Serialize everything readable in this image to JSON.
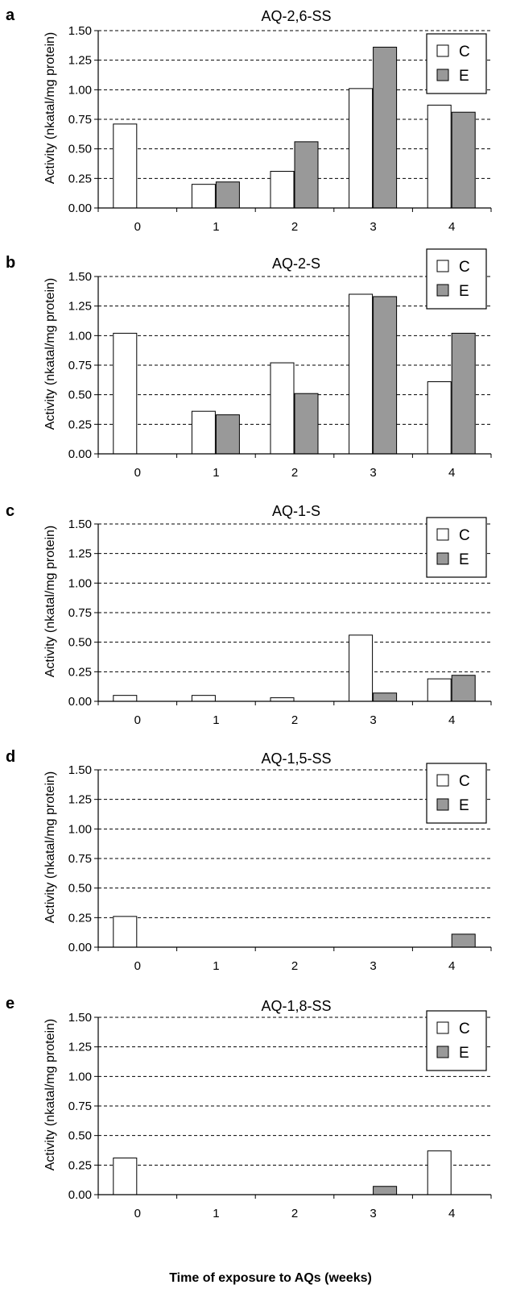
{
  "figure": {
    "xlabel": "Time of exposure to AQs (weeks)",
    "ylabel": "Activity (nkatal/mg protein)",
    "legend": [
      {
        "label": "C",
        "color": "#ffffff"
      },
      {
        "label": "E",
        "color": "#999999"
      }
    ]
  },
  "chart_data": [
    {
      "type": "bar",
      "panel": "a",
      "title": "AQ-2,6-SS",
      "categories": [
        "0",
        "1",
        "2",
        "3",
        "4"
      ],
      "series": [
        {
          "name": "C",
          "color": "#ffffff",
          "values": [
            0.71,
            0.2,
            0.31,
            1.01,
            0.87
          ]
        },
        {
          "name": "E",
          "color": "#999999",
          "values": [
            0.0,
            0.22,
            0.56,
            1.36,
            0.81
          ]
        }
      ],
      "ylabel": "Activity (nkatal/mg protein)",
      "ylim": [
        0,
        1.5
      ],
      "yticks": [
        "0.00",
        "0.25",
        "0.50",
        "0.75",
        "1.00",
        "1.25",
        "1.50"
      ],
      "grid": "horizontal dashed",
      "legend_position": "top-right"
    },
    {
      "type": "bar",
      "panel": "b",
      "title": "AQ-2-S",
      "categories": [
        "0",
        "1",
        "2",
        "3",
        "4"
      ],
      "series": [
        {
          "name": "C",
          "color": "#ffffff",
          "values": [
            1.02,
            0.36,
            0.77,
            1.35,
            0.61
          ]
        },
        {
          "name": "E",
          "color": "#999999",
          "values": [
            0.0,
            0.33,
            0.51,
            1.33,
            1.02
          ]
        }
      ],
      "ylabel": "Activity (nkatal/mg protein)",
      "ylim": [
        0,
        1.5
      ],
      "yticks": [
        "0.00",
        "0.25",
        "0.50",
        "0.75",
        "1.00",
        "1.25",
        "1.50"
      ],
      "grid": "horizontal dashed",
      "legend_position": "top-right"
    },
    {
      "type": "bar",
      "panel": "c",
      "title": "AQ-1-S",
      "categories": [
        "0",
        "1",
        "2",
        "3",
        "4"
      ],
      "series": [
        {
          "name": "C",
          "color": "#ffffff",
          "values": [
            0.05,
            0.05,
            0.03,
            0.56,
            0.19
          ]
        },
        {
          "name": "E",
          "color": "#999999",
          "values": [
            0.0,
            0.0,
            0.0,
            0.07,
            0.22
          ]
        }
      ],
      "ylabel": "Activity (nkatal/mg protein)",
      "ylim": [
        0,
        1.5
      ],
      "yticks": [
        "0.00",
        "0.25",
        "0.50",
        "0.75",
        "1.00",
        "1.25",
        "1.50"
      ],
      "grid": "horizontal dashed",
      "legend_position": "top-right"
    },
    {
      "type": "bar",
      "panel": "d",
      "title": "AQ-1,5-SS",
      "categories": [
        "0",
        "1",
        "2",
        "3",
        "4"
      ],
      "series": [
        {
          "name": "C",
          "color": "#ffffff",
          "values": [
            0.26,
            0.0,
            0.0,
            0.0,
            0.0
          ]
        },
        {
          "name": "E",
          "color": "#999999",
          "values": [
            0.0,
            0.0,
            0.0,
            0.0,
            0.11
          ]
        }
      ],
      "ylabel": "Activity (nkatal/mg protein)",
      "ylim": [
        0,
        1.5
      ],
      "yticks": [
        "0.00",
        "0.25",
        "0.50",
        "0.75",
        "1.00",
        "1.25",
        "1.50"
      ],
      "grid": "horizontal dashed",
      "legend_position": "top-right"
    },
    {
      "type": "bar",
      "panel": "e",
      "title": "AQ-1,8-SS",
      "categories": [
        "0",
        "1",
        "2",
        "3",
        "4"
      ],
      "series": [
        {
          "name": "C",
          "color": "#ffffff",
          "values": [
            0.31,
            0.0,
            0.0,
            0.0,
            0.37
          ]
        },
        {
          "name": "E",
          "color": "#999999",
          "values": [
            0.0,
            0.0,
            0.0,
            0.07,
            0.0
          ]
        }
      ],
      "ylabel": "Activity (nkatal/mg protein)",
      "ylim": [
        0,
        1.5
      ],
      "yticks": [
        "0.00",
        "0.25",
        "0.50",
        "0.75",
        "1.00",
        "1.25",
        "1.50"
      ],
      "grid": "horizontal dashed",
      "legend_position": "top-right"
    }
  ]
}
